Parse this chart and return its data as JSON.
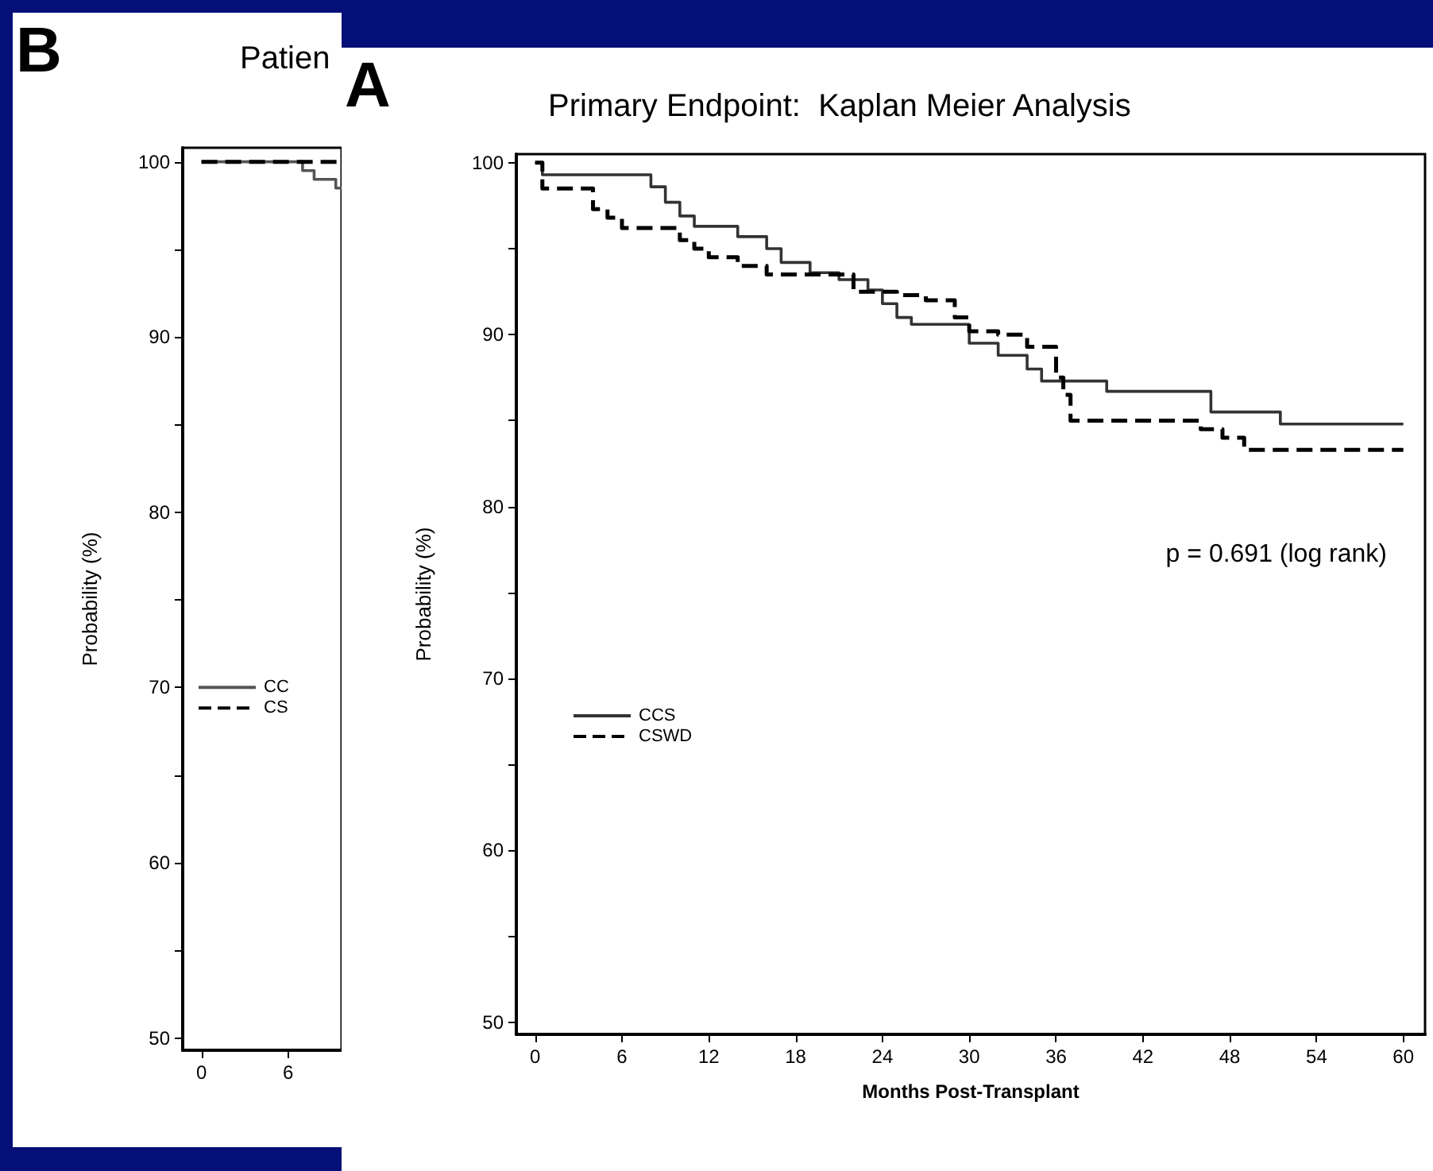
{
  "chart_data": [
    {
      "type": "step",
      "title": "Patien",
      "ylabel": "Probability (%)",
      "annotations": [
        "B"
      ],
      "xlim": [
        -1.3,
        9.7
      ],
      "xticks": [
        0,
        6
      ],
      "ylim": [
        49.3,
        100.8
      ],
      "yticks": [
        50,
        {
          "value": 55,
          "label": null
        },
        60,
        {
          "value": 65,
          "label": null
        },
        70,
        {
          "value": 75,
          "label": null
        },
        80,
        {
          "value": 85,
          "label": null
        },
        90,
        {
          "value": 95,
          "label": null
        },
        100
      ],
      "grid": false,
      "legend": "left",
      "series": [
        {
          "name": "CC",
          "color": "#555555",
          "line_style": "solid",
          "x": [
            0,
            7,
            7.8,
            9.3,
            9.7
          ],
          "values": [
            100,
            99.5,
            99,
            98.5,
            98.5
          ]
        },
        {
          "name": "CS",
          "color": "#000000",
          "line_style": "dashed",
          "x": [
            0,
            9.7
          ],
          "values": [
            100,
            100
          ]
        }
      ]
    },
    {
      "type": "step",
      "title": "Primary Endpoint:  Kaplan Meier Analysis",
      "xlabel": "Months Post-Transplant",
      "ylabel": "Probability (%)",
      "annotations": [
        "A",
        "p = 0.691 (log rank)"
      ],
      "xlim": [
        -1.3,
        61.5
      ],
      "xticks": [
        0,
        6,
        12,
        18,
        24,
        30,
        36,
        42,
        48,
        54,
        60
      ],
      "ylim": [
        49.3,
        100.5
      ],
      "yticks": [
        50,
        {
          "value": 55,
          "label": null
        },
        60,
        {
          "value": 65,
          "label": null
        },
        70,
        {
          "value": 75,
          "label": null
        },
        80,
        {
          "value": 85,
          "label": null
        },
        90,
        {
          "value": 95,
          "label": null
        },
        100
      ],
      "grid": false,
      "legend": "left",
      "series": [
        {
          "name": "CCS",
          "color": "#333333",
          "line_style": "solid",
          "x": [
            0,
            0.5,
            7,
            8,
            9,
            10,
            11,
            14,
            16,
            17,
            19,
            21,
            23,
            24,
            25,
            26,
            30,
            32,
            34,
            35,
            39.5,
            46.7,
            51.5,
            60
          ],
          "values": [
            100,
            99.3,
            99.3,
            98.6,
            97.7,
            96.9,
            96.3,
            95.7,
            95,
            94.2,
            93.6,
            93.2,
            92.6,
            91.8,
            91,
            90.6,
            89.5,
            88.8,
            88,
            87.3,
            86.7,
            85.5,
            84.8,
            84.8
          ]
        },
        {
          "name": "CSWD",
          "color": "#000000",
          "line_style": "dashed",
          "x": [
            0,
            0.5,
            4,
            5,
            6,
            10,
            11,
            12,
            14,
            16,
            22,
            25,
            27,
            29,
            30,
            32,
            34,
            36,
            36.5,
            37,
            46,
            47.5,
            49,
            60
          ],
          "values": [
            100,
            98.5,
            97.3,
            96.8,
            96.2,
            95.5,
            95,
            94.5,
            94,
            93.5,
            92.5,
            92.3,
            92,
            91,
            90.2,
            90,
            89.3,
            87.5,
            86.5,
            85,
            84.5,
            84,
            83.3,
            83.3
          ]
        }
      ]
    }
  ]
}
